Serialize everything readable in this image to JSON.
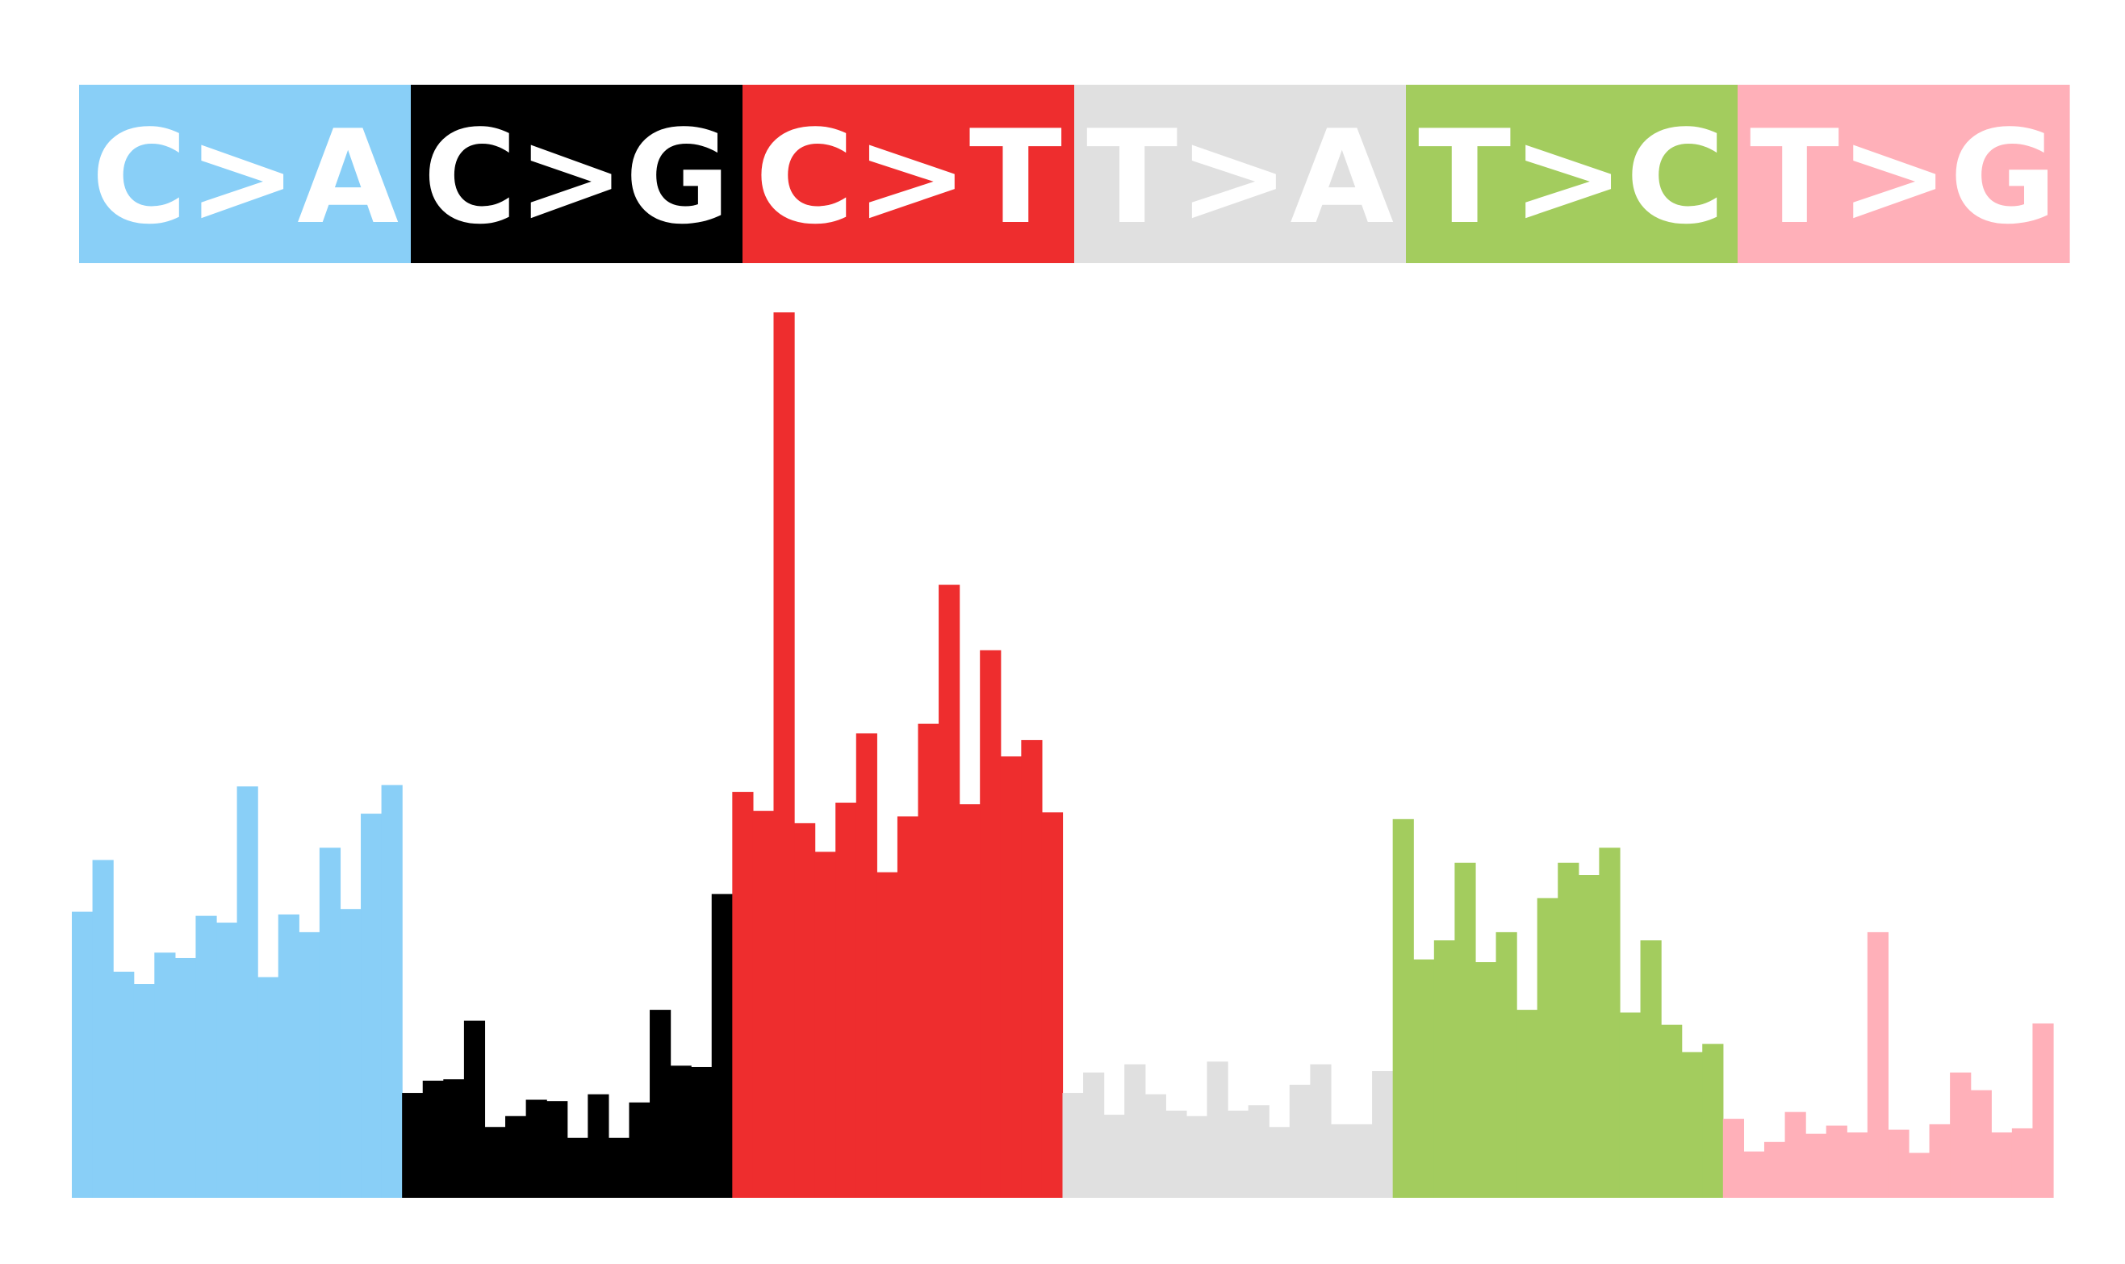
{
  "chart_data": {
    "type": "bar",
    "ylim": [
      0,
      650
    ],
    "groups": [
      {
        "name": "C>A",
        "color": "#89cff7",
        "values": [
          210,
          248,
          166,
          157,
          180,
          176,
          207,
          202,
          302,
          162,
          208,
          195,
          257,
          212,
          282,
          303
        ]
      },
      {
        "name": "C>G",
        "color": "#000000",
        "values": [
          77,
          86,
          87,
          130,
          52,
          60,
          72,
          71,
          44,
          76,
          44,
          70,
          138,
          97,
          96,
          223
        ]
      },
      {
        "name": "C>T",
        "color": "#ee2d2e",
        "values": [
          298,
          284,
          650,
          275,
          254,
          290,
          341,
          239,
          280,
          348,
          450,
          289,
          402,
          324,
          336,
          283
        ]
      },
      {
        "name": "T>A",
        "color": "#e0e0e0",
        "values": [
          77,
          92,
          61,
          98,
          76,
          64,
          60,
          100,
          64,
          68,
          52,
          83,
          98,
          54,
          54,
          93
        ]
      },
      {
        "name": "T>C",
        "color": "#a3cc5e",
        "values": [
          278,
          175,
          189,
          246,
          173,
          195,
          138,
          220,
          246,
          237,
          257,
          136,
          189,
          127,
          107,
          113
        ]
      },
      {
        "name": "T>G",
        "color": "#ffb0b9",
        "values": [
          58,
          34,
          41,
          63,
          47,
          53,
          48,
          195,
          50,
          33,
          54,
          92,
          79,
          48,
          51,
          128
        ]
      }
    ]
  }
}
